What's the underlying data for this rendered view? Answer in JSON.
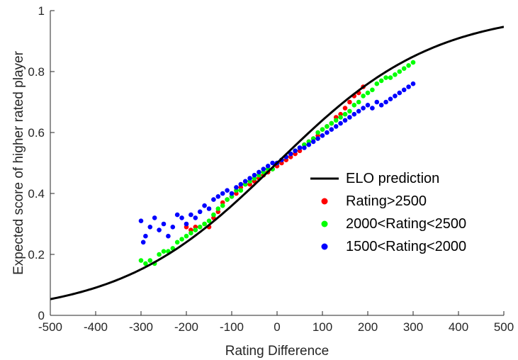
{
  "chart_data": {
    "type": "scatter",
    "xlabel": "Rating Difference",
    "ylabel": "Expected score of higher rated player",
    "xlim": [
      -500,
      500
    ],
    "ylim": [
      0,
      1
    ],
    "xticks": [
      "-500",
      "-400",
      "-300",
      "-200",
      "-100",
      "0",
      "100",
      "200",
      "300",
      "400",
      "500"
    ],
    "yticks": [
      "0",
      "0.2",
      "0.4",
      "0.6",
      "0.8",
      "1"
    ],
    "grid": false,
    "legend_position": "center-right",
    "series": [
      {
        "name": "ELO prediction",
        "type": "line",
        "color": "#000000",
        "formula": "1/(1+10^(-x/400))",
        "x": [
          -500,
          -450,
          -400,
          -350,
          -300,
          -250,
          -200,
          -150,
          -100,
          -50,
          0,
          50,
          100,
          150,
          200,
          250,
          300,
          350,
          400,
          450,
          500
        ],
        "y": [
          0.053,
          0.07,
          0.091,
          0.118,
          0.151,
          0.192,
          0.24,
          0.297,
          0.36,
          0.429,
          0.5,
          0.571,
          0.64,
          0.703,
          0.76,
          0.808,
          0.849,
          0.882,
          0.909,
          0.93,
          0.947
        ]
      },
      {
        "name": "Rating>2500",
        "type": "scatter",
        "color": "#ff0000",
        "x": [
          -200,
          -190,
          -180,
          -170,
          -160,
          -150,
          -140,
          -130,
          -120,
          -110,
          -100,
          -90,
          -80,
          -70,
          -60,
          -50,
          -40,
          -30,
          -20,
          -10,
          0,
          10,
          20,
          30,
          40,
          50,
          60,
          70,
          80,
          90,
          100,
          110,
          120,
          130,
          140,
          150,
          160,
          170,
          180,
          190
        ],
        "y": [
          0.29,
          0.28,
          0.29,
          0.29,
          0.3,
          0.29,
          0.32,
          0.34,
          0.37,
          0.38,
          0.39,
          0.4,
          0.42,
          0.43,
          0.43,
          0.44,
          0.45,
          0.46,
          0.47,
          0.48,
          0.49,
          0.5,
          0.51,
          0.52,
          0.53,
          0.54,
          0.56,
          0.57,
          0.58,
          0.59,
          0.61,
          0.62,
          0.63,
          0.65,
          0.66,
          0.68,
          0.7,
          0.72,
          0.73,
          0.75
        ]
      },
      {
        "name": "2000<Rating<2500",
        "type": "scatter",
        "color": "#00ff00",
        "x": [
          -300,
          -290,
          -280,
          -270,
          -260,
          -250,
          -240,
          -230,
          -220,
          -210,
          -200,
          -190,
          -180,
          -170,
          -160,
          -150,
          -140,
          -130,
          -120,
          -110,
          -100,
          -90,
          -80,
          -70,
          -60,
          -50,
          -40,
          -30,
          -20,
          -10,
          0,
          10,
          20,
          30,
          40,
          50,
          60,
          70,
          80,
          90,
          100,
          110,
          120,
          130,
          140,
          150,
          160,
          170,
          180,
          190,
          200,
          210,
          220,
          230,
          240,
          250,
          260,
          270,
          280,
          290,
          300
        ],
        "y": [
          0.18,
          0.17,
          0.18,
          0.17,
          0.2,
          0.21,
          0.21,
          0.22,
          0.24,
          0.25,
          0.26,
          0.27,
          0.28,
          0.29,
          0.3,
          0.31,
          0.33,
          0.35,
          0.36,
          0.38,
          0.39,
          0.41,
          0.41,
          0.43,
          0.44,
          0.45,
          0.46,
          0.47,
          0.48,
          0.48,
          0.5,
          0.51,
          0.52,
          0.53,
          0.54,
          0.55,
          0.56,
          0.57,
          0.58,
          0.6,
          0.61,
          0.62,
          0.63,
          0.64,
          0.65,
          0.66,
          0.67,
          0.69,
          0.7,
          0.72,
          0.73,
          0.74,
          0.76,
          0.77,
          0.78,
          0.78,
          0.79,
          0.8,
          0.81,
          0.82,
          0.83
        ]
      },
      {
        "name": "1500<Rating<2000",
        "type": "scatter",
        "color": "#0000ff",
        "x": [
          -300,
          -295,
          -290,
          -280,
          -270,
          -260,
          -250,
          -240,
          -230,
          -220,
          -210,
          -200,
          -190,
          -180,
          -170,
          -160,
          -150,
          -140,
          -130,
          -120,
          -110,
          -100,
          -90,
          -80,
          -70,
          -60,
          -50,
          -40,
          -30,
          -20,
          -10,
          0,
          10,
          20,
          30,
          40,
          50,
          60,
          70,
          80,
          90,
          100,
          110,
          120,
          130,
          140,
          150,
          160,
          170,
          180,
          190,
          200,
          210,
          220,
          230,
          240,
          250,
          260,
          270,
          280,
          290,
          300
        ],
        "y": [
          0.31,
          0.24,
          0.26,
          0.29,
          0.32,
          0.28,
          0.3,
          0.26,
          0.29,
          0.33,
          0.32,
          0.3,
          0.33,
          0.32,
          0.34,
          0.36,
          0.35,
          0.38,
          0.39,
          0.4,
          0.41,
          0.4,
          0.42,
          0.43,
          0.44,
          0.45,
          0.46,
          0.47,
          0.48,
          0.49,
          0.5,
          0.5,
          0.51,
          0.52,
          0.53,
          0.54,
          0.55,
          0.55,
          0.56,
          0.57,
          0.58,
          0.59,
          0.6,
          0.61,
          0.62,
          0.63,
          0.64,
          0.65,
          0.66,
          0.67,
          0.68,
          0.69,
          0.68,
          0.7,
          0.69,
          0.7,
          0.71,
          0.72,
          0.73,
          0.74,
          0.75,
          0.76
        ]
      }
    ]
  }
}
